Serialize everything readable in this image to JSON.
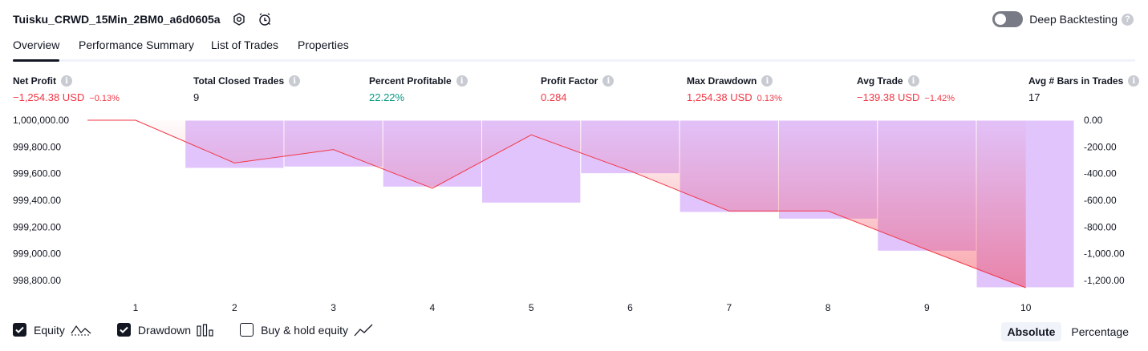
{
  "header": {
    "title": "Tuisku_CRWD_15Min_2BM0_a6d0605a",
    "deep_backtesting_label": "Deep Backtesting",
    "help_glyph": "?"
  },
  "tabs": [
    {
      "label": "Overview",
      "active": true
    },
    {
      "label": "Performance Summary",
      "active": false
    },
    {
      "label": "List of Trades",
      "active": false
    },
    {
      "label": "Properties",
      "active": false
    }
  ],
  "metrics": [
    {
      "label": "Net Profit",
      "value": "−1,254.38 USD",
      "sub": "−0.13%",
      "color": "red"
    },
    {
      "label": "Total Closed Trades",
      "value": "9",
      "sub": "",
      "color": "dark"
    },
    {
      "label": "Percent Profitable",
      "value": "22.22%",
      "sub": "",
      "color": "green"
    },
    {
      "label": "Profit Factor",
      "value": "0.284",
      "sub": "",
      "color": "red"
    },
    {
      "label": "Max Drawdown",
      "value": "1,254.38 USD",
      "sub": "0.13%",
      "color": "red"
    },
    {
      "label": "Avg Trade",
      "value": "−139.38 USD",
      "sub": "−1.42%",
      "color": "red"
    },
    {
      "label": "Avg # Bars in Trades",
      "value": "17",
      "sub": "",
      "color": "dark"
    }
  ],
  "info_glyph": "i",
  "chart_data": {
    "type": "line",
    "x": [
      1,
      2,
      3,
      4,
      5,
      6,
      7,
      8,
      9,
      10
    ],
    "series": [
      {
        "name": "Equity",
        "type": "line",
        "axis": "left",
        "values": [
          1000000.0,
          999680.0,
          999780.0,
          999490.0,
          999890.0,
          999620.0,
          999320.0,
          999320.0,
          999030.0,
          998745.62
        ]
      },
      {
        "name": "Drawdown",
        "type": "bar",
        "axis": "right",
        "values": [
          0,
          -360.0,
          -350.0,
          -500.0,
          -620.0,
          -400.0,
          -690.0,
          -740.0,
          -980.0,
          -1254.38
        ]
      }
    ],
    "y_left_ticks": [
      "1,000,000.00",
      "999,800.00",
      "999,600.00",
      "999,400.00",
      "999,200.00",
      "999,000.00",
      "998,800.00"
    ],
    "y_left_range": [
      998745.62,
      1000000.0
    ],
    "y_right_ticks": [
      "0.00",
      "-200.00",
      "-400.00",
      "-600.00",
      "-800.00",
      "-1,000.00",
      "-1,200.00"
    ],
    "y_right_range": [
      -1254.38,
      0
    ],
    "x_tick_labels": [
      "1",
      "2",
      "3",
      "4",
      "5",
      "6",
      "7",
      "8",
      "9",
      "10"
    ],
    "colors": {
      "equity_line": "#f23645",
      "drawdown_bar": "#e1c4fc",
      "grid": "#ffffff"
    }
  },
  "legend": [
    {
      "label": "Equity",
      "checked": true,
      "icon": "equity-line-icon"
    },
    {
      "label": "Drawdown",
      "checked": true,
      "icon": "drawdown-bars-icon"
    },
    {
      "label": "Buy & hold equity",
      "checked": false,
      "icon": "buy-hold-line-icon"
    }
  ],
  "mode": {
    "absolute_label": "Absolute",
    "percentage_label": "Percentage",
    "active": "absolute"
  }
}
